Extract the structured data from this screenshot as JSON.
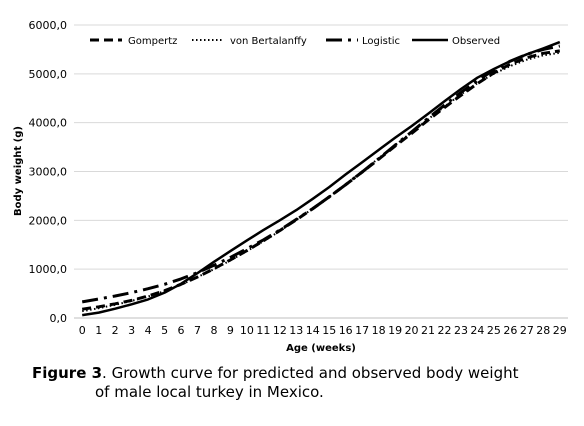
{
  "chart_data": {
    "type": "line",
    "xlabel": "Age (weeks)",
    "ylabel": "Body weight (g)",
    "ylim": [
      0,
      6000
    ],
    "y_ticks": [
      "0,0",
      "1000,0",
      "2000,0",
      "3000,0",
      "4000,0",
      "5000,0",
      "6000,0"
    ],
    "y_tick_values": [
      0,
      1000,
      2000,
      3000,
      4000,
      5000,
      6000
    ],
    "x": [
      0,
      1,
      2,
      3,
      4,
      5,
      6,
      7,
      8,
      9,
      10,
      11,
      12,
      13,
      14,
      15,
      16,
      17,
      18,
      19,
      20,
      21,
      22,
      23,
      24,
      25,
      26,
      27,
      28,
      29
    ],
    "grid": "horizontal",
    "legend_position": "top",
    "series": [
      {
        "name": "Gompertz",
        "style": "dashed",
        "color": "#000000",
        "values": [
          180,
          230,
          290,
          360,
          450,
          560,
          690,
          840,
          1010,
          1190,
          1380,
          1580,
          1790,
          2010,
          2240,
          2480,
          2730,
          2990,
          3250,
          3520,
          3780,
          4050,
          4310,
          4560,
          4800,
          5020,
          5200,
          5330,
          5420,
          5470
        ]
      },
      {
        "name": "von Bertalanffy",
        "style": "dotted",
        "color": "#000000",
        "values": [
          140,
          200,
          270,
          350,
          440,
          550,
          680,
          840,
          1000,
          1180,
          1370,
          1570,
          1780,
          2010,
          2240,
          2480,
          2740,
          3000,
          3270,
          3540,
          3800,
          4070,
          4330,
          4580,
          4810,
          5000,
          5160,
          5290,
          5380,
          5430
        ]
      },
      {
        "name": "Logistic",
        "style": "long-dash",
        "color": "#000000",
        "values": [
          330,
          390,
          450,
          520,
          600,
          690,
          800,
          930,
          1080,
          1240,
          1420,
          1600,
          1800,
          2020,
          2240,
          2480,
          2730,
          2990,
          3260,
          3540,
          3810,
          4090,
          4360,
          4620,
          4860,
          5080,
          5260,
          5400,
          5500,
          5570
        ]
      },
      {
        "name": "Observed",
        "style": "solid",
        "color": "#000000",
        "values": [
          60,
          110,
          190,
          280,
          380,
          520,
          700,
          920,
          1150,
          1370,
          1590,
          1800,
          2000,
          2210,
          2440,
          2680,
          2940,
          3190,
          3440,
          3690,
          3930,
          4180,
          4440,
          4690,
          4920,
          5100,
          5260,
          5400,
          5520,
          5650
        ]
      }
    ]
  },
  "caption": {
    "label": "Figure 3",
    "text_line1": ". Growth curve for predicted and observed body weight",
    "text_line2": "of male local turkey in Mexico."
  }
}
